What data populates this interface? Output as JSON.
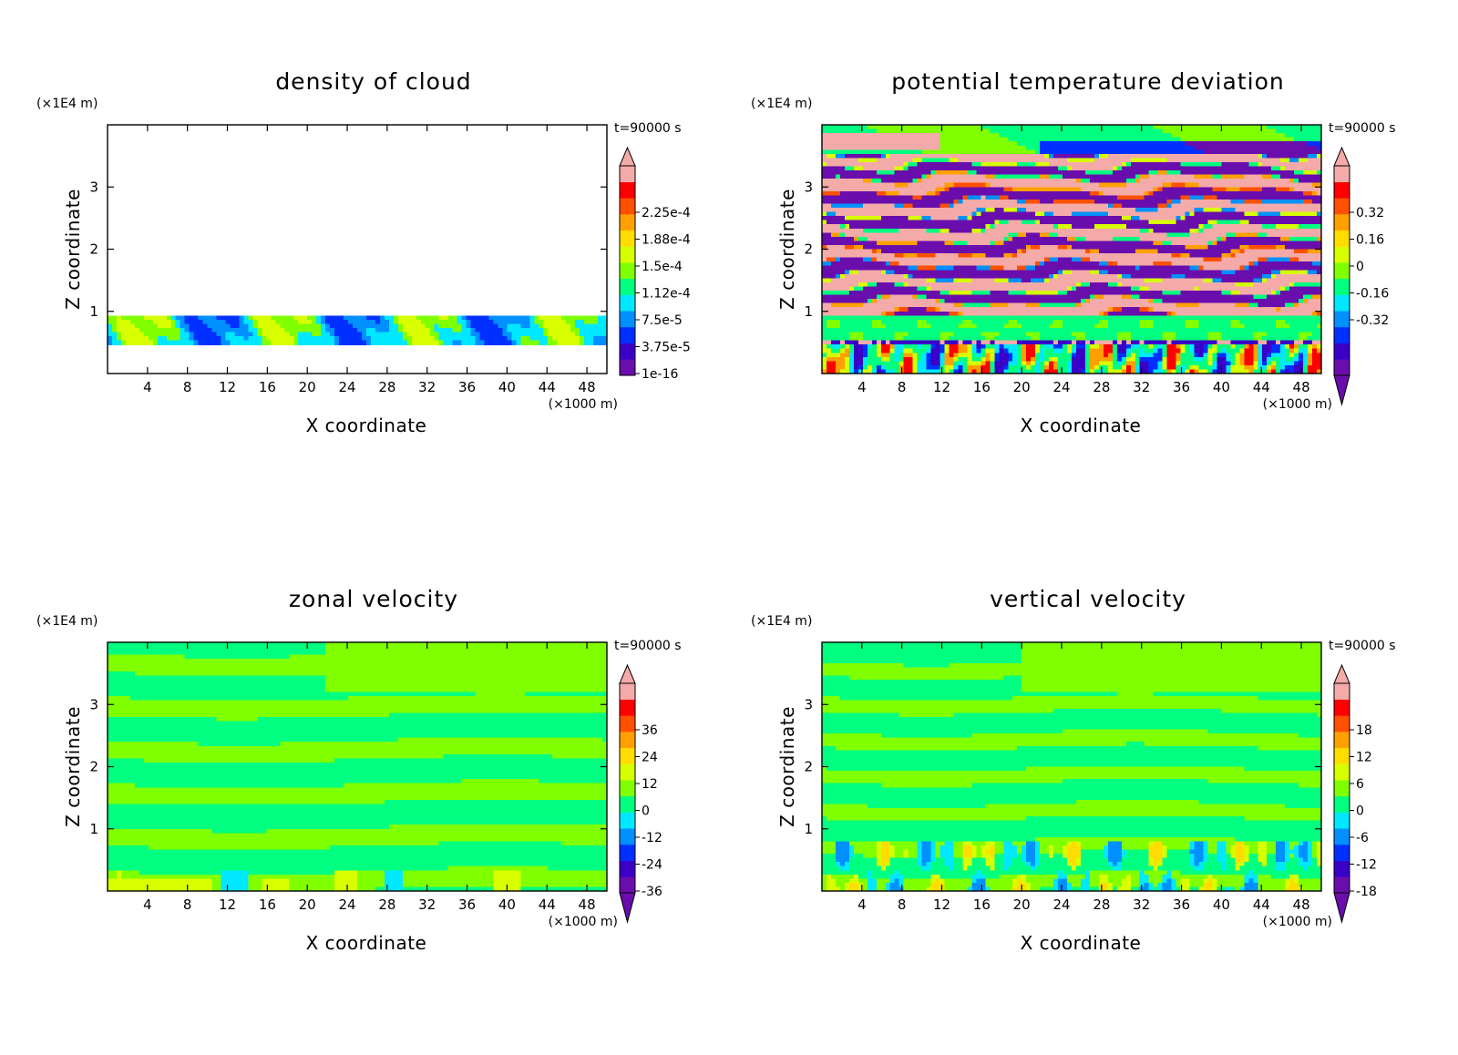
{
  "palette": [
    "#6a0dad",
    "#3a00c8",
    "#0030ff",
    "#0090ff",
    "#00e8ff",
    "#00ff80",
    "#80ff00",
    "#d8ff00",
    "#ffdd00",
    "#ffa000",
    "#ff5000",
    "#ff0000",
    "#f4aaa8"
  ],
  "chart_data": [
    {
      "type": "heatmap",
      "title": "density of cloud",
      "xlabel": "X coordinate",
      "ylabel": "Z coordinate",
      "x_unit": "(×1000 m)",
      "y_unit": "(×1E4 m)",
      "time_label": "t=90000 s",
      "xlim": [
        0,
        50
      ],
      "ylim": [
        0,
        4
      ],
      "x_ticks": [
        "4",
        "8",
        "12",
        "16",
        "20",
        "24",
        "28",
        "32",
        "36",
        "40",
        "44",
        "48"
      ],
      "y_ticks": [
        "1",
        "2",
        "3"
      ],
      "colorbar_labels": [
        "2.25e-4",
        "1.88e-4",
        "1.5e-4",
        "1.12e-4",
        "7.5e-5",
        "3.75e-5",
        "1e-16"
      ],
      "pattern": "cloud",
      "cloud_layer_z": [
        0.45,
        0.95
      ]
    },
    {
      "type": "heatmap",
      "title": "potential temperature deviation",
      "xlabel": "X coordinate",
      "ylabel": "Z coordinate",
      "x_unit": "(×1000 m)",
      "y_unit": "(×1E4 m)",
      "time_label": "t=90000 s",
      "xlim": [
        0,
        50
      ],
      "ylim": [
        0,
        4
      ],
      "x_ticks": [
        "4",
        "8",
        "12",
        "16",
        "20",
        "24",
        "28",
        "32",
        "36",
        "40",
        "44",
        "48"
      ],
      "y_ticks": [
        "1",
        "2",
        "3"
      ],
      "colorbar_labels": [
        "0.32",
        "0.16",
        "0",
        "-0.16",
        "-0.32"
      ],
      "pattern": "theta"
    },
    {
      "type": "heatmap",
      "title": "zonal velocity",
      "xlabel": "X coordinate",
      "ylabel": "Z coordinate",
      "x_unit": "(×1000 m)",
      "y_unit": "(×1E4 m)",
      "time_label": "t=90000 s",
      "xlim": [
        0,
        50
      ],
      "ylim": [
        0,
        4
      ],
      "x_ticks": [
        "4",
        "8",
        "12",
        "16",
        "20",
        "24",
        "28",
        "32",
        "36",
        "40",
        "44",
        "48"
      ],
      "y_ticks": [
        "1",
        "2",
        "3"
      ],
      "colorbar_labels": [
        "36",
        "24",
        "12",
        "0",
        "-12",
        "-24",
        "-36"
      ],
      "pattern": "zonal"
    },
    {
      "type": "heatmap",
      "title": "vertical velocity",
      "xlabel": "X coordinate",
      "ylabel": "Z coordinate",
      "x_unit": "(×1000 m)",
      "y_unit": "(×1E4 m)",
      "time_label": "t=90000 s",
      "xlim": [
        0,
        50
      ],
      "ylim": [
        0,
        4
      ],
      "x_ticks": [
        "4",
        "8",
        "12",
        "16",
        "20",
        "24",
        "28",
        "32",
        "36",
        "40",
        "44",
        "48"
      ],
      "y_ticks": [
        "1",
        "2",
        "3"
      ],
      "colorbar_labels": [
        "18",
        "12",
        "6",
        "0",
        "-6",
        "-12",
        "-18"
      ],
      "pattern": "vertical"
    }
  ]
}
